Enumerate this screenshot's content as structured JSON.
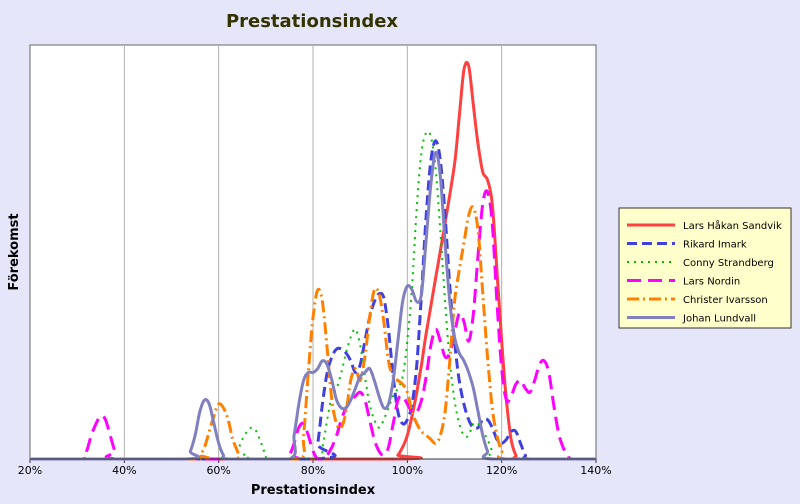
{
  "chart_data": {
    "type": "line",
    "title": "Prestationsindex",
    "xlabel": "Prestationsindex",
    "ylabel": "Förekomst",
    "xlim": [
      20,
      140
    ],
    "ylim": [
      0,
      100
    ],
    "x_ticks": [
      20,
      40,
      60,
      80,
      100,
      120,
      140
    ],
    "x_tick_labels": [
      "20%",
      "40%",
      "60%",
      "80%",
      "100%",
      "120%",
      "140%"
    ],
    "grid": "vertical",
    "legend_position": "right",
    "series": [
      {
        "name": "Lars Håkan Sandvik",
        "color": "#ff4040",
        "dash": "solid",
        "points": [
          [
            20,
            0
          ],
          [
            97,
            0
          ],
          [
            98,
            1
          ],
          [
            99,
            3
          ],
          [
            100,
            6
          ],
          [
            101,
            11
          ],
          [
            102,
            17
          ],
          [
            103,
            24
          ],
          [
            104,
            32
          ],
          [
            106,
            46
          ],
          [
            108,
            60
          ],
          [
            110,
            75
          ],
          [
            111,
            87
          ],
          [
            112,
            99
          ],
          [
            113,
            100
          ],
          [
            114,
            90
          ],
          [
            115,
            80
          ],
          [
            116,
            73
          ],
          [
            117,
            71
          ],
          [
            118,
            65
          ],
          [
            119,
            48
          ],
          [
            120,
            30
          ],
          [
            121,
            15
          ],
          [
            122,
            5
          ],
          [
            123,
            1
          ],
          [
            124,
            0
          ],
          [
            140,
            0
          ]
        ]
      },
      {
        "name": "Rikard Imark",
        "color": "#4040e0",
        "dash": "dash",
        "points": [
          [
            20,
            0
          ],
          [
            80,
            0
          ],
          [
            81,
            4
          ],
          [
            82,
            14
          ],
          [
            83,
            22
          ],
          [
            84,
            26
          ],
          [
            85,
            28
          ],
          [
            86,
            28
          ],
          [
            87,
            27
          ],
          [
            88,
            25
          ],
          [
            89,
            22
          ],
          [
            90,
            24
          ],
          [
            91,
            30
          ],
          [
            92,
            36
          ],
          [
            93,
            40
          ],
          [
            94,
            42
          ],
          [
            95,
            41
          ],
          [
            96,
            33
          ],
          [
            97,
            21
          ],
          [
            98,
            12
          ],
          [
            99,
            9
          ],
          [
            100,
            10
          ],
          [
            101,
            14
          ],
          [
            102,
            24
          ],
          [
            103,
            42
          ],
          [
            104,
            62
          ],
          [
            105,
            76
          ],
          [
            106,
            81
          ],
          [
            107,
            76
          ],
          [
            108,
            62
          ],
          [
            109,
            44
          ],
          [
            110,
            30
          ],
          [
            111,
            20
          ],
          [
            112,
            14
          ],
          [
            113,
            10
          ],
          [
            114,
            8
          ],
          [
            115,
            8
          ],
          [
            116,
            10
          ],
          [
            117,
            10
          ],
          [
            118,
            8
          ],
          [
            119,
            5
          ],
          [
            120,
            4
          ],
          [
            121,
            5
          ],
          [
            122,
            7
          ],
          [
            123,
            7
          ],
          [
            124,
            4
          ],
          [
            125,
            1
          ],
          [
            126,
            0
          ],
          [
            140,
            0
          ]
        ]
      },
      {
        "name": "Conny Strandberg",
        "color": "#00c000",
        "dash": "dot",
        "points": [
          [
            20,
            0
          ],
          [
            63,
            0
          ],
          [
            64,
            2
          ],
          [
            65,
            5
          ],
          [
            66,
            7
          ],
          [
            67,
            8
          ],
          [
            68,
            7
          ],
          [
            69,
            4
          ],
          [
            70,
            1
          ],
          [
            71,
            0
          ],
          [
            81,
            0
          ],
          [
            82,
            3
          ],
          [
            83,
            10
          ],
          [
            84,
            16
          ],
          [
            85,
            18
          ],
          [
            86,
            22
          ],
          [
            87,
            27
          ],
          [
            88,
            31
          ],
          [
            89,
            33
          ],
          [
            90,
            29
          ],
          [
            91,
            21
          ],
          [
            92,
            14
          ],
          [
            93,
            10
          ],
          [
            94,
            8
          ],
          [
            95,
            10
          ],
          [
            96,
            13
          ],
          [
            97,
            16
          ],
          [
            98,
            18
          ],
          [
            99,
            21
          ],
          [
            100,
            30
          ],
          [
            101,
            44
          ],
          [
            102,
            64
          ],
          [
            103,
            78
          ],
          [
            104,
            83
          ],
          [
            105,
            82
          ],
          [
            106,
            74
          ],
          [
            107,
            58
          ],
          [
            108,
            40
          ],
          [
            109,
            25
          ],
          [
            110,
            15
          ],
          [
            111,
            9
          ],
          [
            112,
            6
          ],
          [
            113,
            6
          ],
          [
            114,
            9
          ],
          [
            115,
            9
          ],
          [
            116,
            7
          ],
          [
            117,
            5
          ],
          [
            118,
            2
          ],
          [
            119,
            0
          ],
          [
            140,
            0
          ]
        ]
      },
      {
        "name": "Lars Nordin",
        "color": "#ff00ff",
        "dash": "longdash",
        "points": [
          [
            20,
            0
          ],
          [
            31,
            0
          ],
          [
            32,
            2
          ],
          [
            33,
            6
          ],
          [
            34,
            9
          ],
          [
            35,
            11
          ],
          [
            36,
            10
          ],
          [
            37,
            6
          ],
          [
            38,
            2
          ],
          [
            39,
            0
          ],
          [
            74,
            0
          ],
          [
            75,
            1
          ],
          [
            76,
            4
          ],
          [
            77,
            8
          ],
          [
            78,
            9
          ],
          [
            79,
            6
          ],
          [
            80,
            2
          ],
          [
            81,
            0
          ],
          [
            82,
            0
          ],
          [
            83,
            1
          ],
          [
            84,
            3
          ],
          [
            85,
            6
          ],
          [
            86,
            10
          ],
          [
            87,
            13
          ],
          [
            88,
            15
          ],
          [
            89,
            16
          ],
          [
            90,
            17
          ],
          [
            91,
            15
          ],
          [
            92,
            10
          ],
          [
            93,
            5
          ],
          [
            94,
            2
          ],
          [
            95,
            1
          ],
          [
            96,
            3
          ],
          [
            97,
            9
          ],
          [
            98,
            15
          ],
          [
            99,
            16
          ],
          [
            100,
            14
          ],
          [
            101,
            12
          ],
          [
            102,
            12
          ],
          [
            103,
            15
          ],
          [
            104,
            21
          ],
          [
            105,
            29
          ],
          [
            106,
            33
          ],
          [
            107,
            30
          ],
          [
            108,
            26
          ],
          [
            109,
            27
          ],
          [
            110,
            32
          ],
          [
            111,
            37
          ],
          [
            112,
            35
          ],
          [
            113,
            30
          ],
          [
            114,
            37
          ],
          [
            115,
            52
          ],
          [
            116,
            65
          ],
          [
            117,
            68
          ],
          [
            118,
            60
          ],
          [
            119,
            40
          ],
          [
            120,
            23
          ],
          [
            121,
            15
          ],
          [
            122,
            16
          ],
          [
            123,
            19
          ],
          [
            124,
            20
          ],
          [
            125,
            18
          ],
          [
            126,
            17
          ],
          [
            127,
            20
          ],
          [
            128,
            24
          ],
          [
            129,
            25
          ],
          [
            130,
            22
          ],
          [
            131,
            14
          ],
          [
            132,
            7
          ],
          [
            133,
            3
          ],
          [
            134,
            1
          ],
          [
            135,
            0
          ],
          [
            140,
            0
          ]
        ]
      },
      {
        "name": "Christer Ivarsson",
        "color": "#ff8000",
        "dash": "dashdot",
        "points": [
          [
            20,
            0
          ],
          [
            55,
            0
          ],
          [
            56,
            1
          ],
          [
            57,
            3
          ],
          [
            58,
            7
          ],
          [
            59,
            11
          ],
          [
            60,
            14
          ],
          [
            61,
            13
          ],
          [
            62,
            10
          ],
          [
            63,
            5
          ],
          [
            64,
            2
          ],
          [
            65,
            0
          ],
          [
            77,
            0
          ],
          [
            78,
            6
          ],
          [
            79,
            22
          ],
          [
            80,
            36
          ],
          [
            81,
            43
          ],
          [
            82,
            40
          ],
          [
            83,
            28
          ],
          [
            84,
            15
          ],
          [
            85,
            9
          ],
          [
            86,
            8
          ],
          [
            87,
            12
          ],
          [
            88,
            20
          ],
          [
            89,
            23
          ],
          [
            90,
            20
          ],
          [
            91,
            26
          ],
          [
            92,
            36
          ],
          [
            93,
            43
          ],
          [
            94,
            42
          ],
          [
            95,
            35
          ],
          [
            96,
            25
          ],
          [
            97,
            21
          ],
          [
            98,
            20
          ],
          [
            99,
            19
          ],
          [
            100,
            17
          ],
          [
            101,
            12
          ],
          [
            102,
            9
          ],
          [
            103,
            7
          ],
          [
            104,
            6
          ],
          [
            105,
            5
          ],
          [
            106,
            4
          ],
          [
            107,
            6
          ],
          [
            108,
            12
          ],
          [
            109,
            25
          ],
          [
            110,
            40
          ],
          [
            111,
            48
          ],
          [
            112,
            55
          ],
          [
            113,
            62
          ],
          [
            114,
            64
          ],
          [
            115,
            58
          ],
          [
            116,
            42
          ],
          [
            117,
            26
          ],
          [
            118,
            13
          ],
          [
            119,
            6
          ],
          [
            120,
            2
          ],
          [
            121,
            0
          ],
          [
            140,
            0
          ]
        ]
      },
      {
        "name": "Johan Lundvall",
        "color": "#8080c0",
        "dash": "solid",
        "points": [
          [
            20,
            0
          ],
          [
            53,
            0
          ],
          [
            54,
            2
          ],
          [
            55,
            6
          ],
          [
            56,
            12
          ],
          [
            57,
            15
          ],
          [
            58,
            14
          ],
          [
            59,
            9
          ],
          [
            60,
            4
          ],
          [
            61,
            1
          ],
          [
            62,
            0
          ],
          [
            75,
            0
          ],
          [
            76,
            6
          ],
          [
            77,
            14
          ],
          [
            78,
            20
          ],
          [
            79,
            22
          ],
          [
            80,
            22
          ],
          [
            81,
            23
          ],
          [
            82,
            25
          ],
          [
            83,
            24
          ],
          [
            84,
            20
          ],
          [
            85,
            15
          ],
          [
            86,
            13
          ],
          [
            87,
            13
          ],
          [
            88,
            15
          ],
          [
            89,
            18
          ],
          [
            90,
            21
          ],
          [
            91,
            22
          ],
          [
            92,
            23
          ],
          [
            93,
            20
          ],
          [
            94,
            16
          ],
          [
            95,
            13
          ],
          [
            96,
            14
          ],
          [
            97,
            20
          ],
          [
            98,
            30
          ],
          [
            99,
            40
          ],
          [
            100,
            44
          ],
          [
            101,
            43
          ],
          [
            102,
            40
          ],
          [
            103,
            42
          ],
          [
            104,
            56
          ],
          [
            105,
            70
          ],
          [
            106,
            78
          ],
          [
            107,
            72
          ],
          [
            108,
            55
          ],
          [
            109,
            40
          ],
          [
            110,
            31
          ],
          [
            111,
            27
          ],
          [
            112,
            25
          ],
          [
            113,
            22
          ],
          [
            114,
            18
          ],
          [
            115,
            12
          ],
          [
            116,
            6
          ],
          [
            117,
            2
          ],
          [
            118,
            0
          ],
          [
            140,
            0
          ]
        ]
      }
    ]
  }
}
